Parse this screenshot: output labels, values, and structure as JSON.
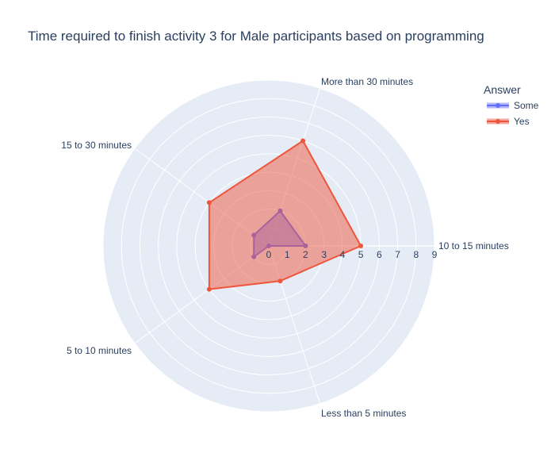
{
  "chart_data": {
    "type": "radar",
    "title": "Time required to finish activity 3 for Male participants based  on programming",
    "categories": [
      "10 to 15 minutes",
      "More than 30 minutes",
      "15 to 30 minutes",
      "5 to 10 minutes",
      "Less than 5 minutes"
    ],
    "radial_ticks": [
      0,
      1,
      2,
      3,
      4,
      5,
      6,
      7,
      8,
      9
    ],
    "radial_range": [
      0,
      9
    ],
    "legend_title": "Answer",
    "legend_position": "top-right",
    "grid": true,
    "series": [
      {
        "name": "Some",
        "values": [
          2,
          2,
          1,
          1,
          0
        ],
        "color": "#636efa"
      },
      {
        "name": "Yes",
        "values": [
          5,
          6,
          4,
          4,
          2
        ],
        "color": "#ef553b"
      }
    ],
    "colors": {
      "plot_bg": "#e5ecf6",
      "grid": "#ffffff",
      "text": "#2a3f5f"
    }
  }
}
